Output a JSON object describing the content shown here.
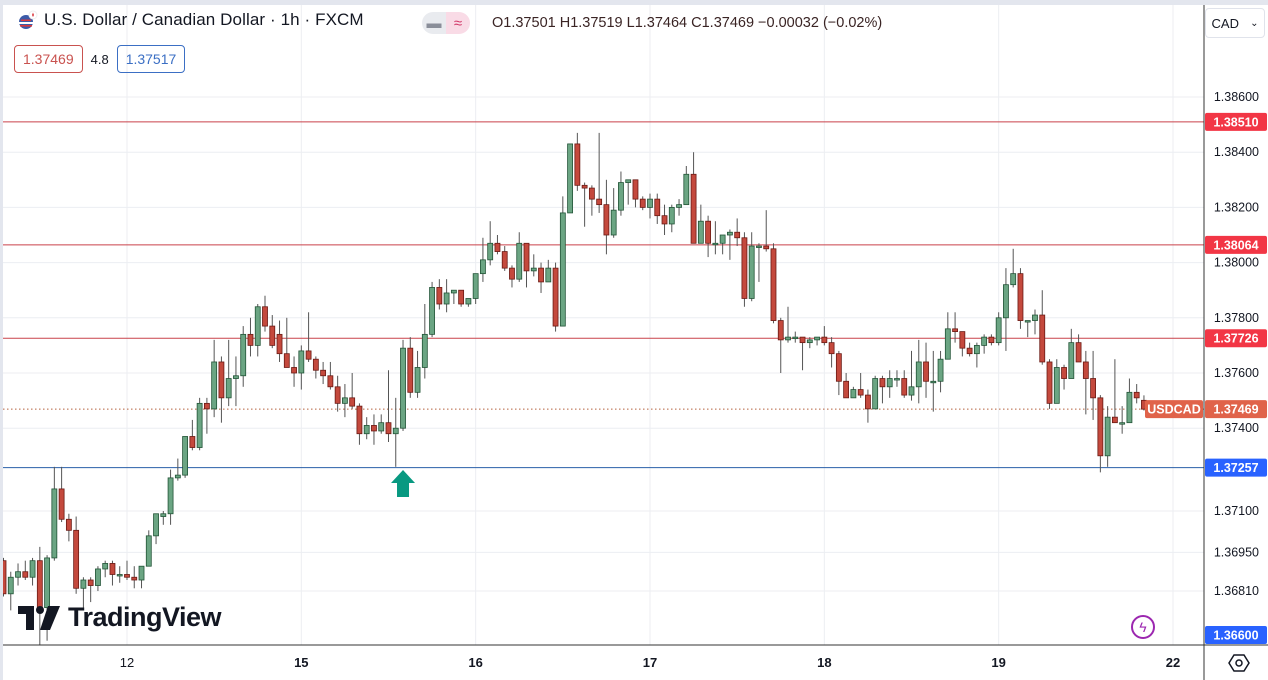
{
  "header": {
    "title": "U.S. Dollar / Canadian Dollar · 1h · FXCM",
    "flag_icon": "us-canada-flag-icon",
    "pill_left_icon": "minus-icon",
    "pill_right_icon": "≈",
    "ohlc": "O1.37501 H1.37519 L1.37464 C1.37469 −0.00032 (−0.02%)",
    "bid": "1.37469",
    "spread": "4.8",
    "ask": "1.37517",
    "currency": "CAD",
    "currency_icon": "chevron-down-icon"
  },
  "logo": {
    "text": "TradingView"
  },
  "colors": {
    "up": "#6ba583",
    "up_border": "#225437",
    "down": "#c4493d",
    "down_border": "#6b1a14",
    "resistance": "#f23645",
    "support": "#2962ff",
    "last_price": "#e0634a",
    "arrow": "#089981"
  },
  "chart_data": {
    "type": "candlestick",
    "symbol_label": "USDCAD",
    "ylim": [
      1.3655,
      1.3872
    ],
    "grid": true,
    "y_ticks": [
      "1.38600",
      "1.38400",
      "1.38200",
      "1.38000",
      "1.37800",
      "1.37600",
      "1.37400",
      "1.37100",
      "1.36950",
      "1.36810"
    ],
    "x_ticks": [
      {
        "label": "12",
        "candle": 17
      },
      {
        "label": "15",
        "candle": 41
      },
      {
        "label": "16",
        "candle": 65
      },
      {
        "label": "17",
        "candle": 89
      },
      {
        "label": "18",
        "candle": 113
      },
      {
        "label": "19",
        "candle": 137
      },
      {
        "label": "22",
        "candle": 161
      }
    ],
    "levels": [
      {
        "price": "1.38510",
        "kind": "resistance"
      },
      {
        "price": "1.38064",
        "kind": "resistance"
      },
      {
        "price": "1.37726",
        "kind": "resistance"
      },
      {
        "price": "1.37257",
        "kind": "support"
      }
    ],
    "bottom_label": "1.36600",
    "last_price": "1.37469",
    "arrow_candle": 54,
    "candles_ohlc": [
      [
        1.3692,
        1.3693,
        1.3679,
        1.368
      ],
      [
        1.368,
        1.3688,
        1.3674,
        1.3686
      ],
      [
        1.3686,
        1.3691,
        1.3683,
        1.3688
      ],
      [
        1.3688,
        1.3692,
        1.3685,
        1.3686
      ],
      [
        1.3686,
        1.3693,
        1.3683,
        1.3692
      ],
      [
        1.3692,
        1.3697,
        1.366,
        1.3675
      ],
      [
        1.3675,
        1.3694,
        1.3663,
        1.3693
      ],
      [
        1.3693,
        1.3726,
        1.3692,
        1.3718
      ],
      [
        1.3718,
        1.3726,
        1.3706,
        1.3707
      ],
      [
        1.3707,
        1.3709,
        1.3699,
        1.3703
      ],
      [
        1.3703,
        1.3708,
        1.368,
        1.3682
      ],
      [
        1.3682,
        1.3686,
        1.3674,
        1.3685
      ],
      [
        1.3685,
        1.3686,
        1.3677,
        1.3683
      ],
      [
        1.3683,
        1.369,
        1.3681,
        1.3689
      ],
      [
        1.3689,
        1.3692,
        1.3686,
        1.3691
      ],
      [
        1.3691,
        1.3692,
        1.3683,
        1.3687
      ],
      [
        1.3687,
        1.369,
        1.3684,
        1.3687
      ],
      [
        1.3687,
        1.3692,
        1.3685,
        1.3686
      ],
      [
        1.3686,
        1.369,
        1.3682,
        1.3685
      ],
      [
        1.3685,
        1.369,
        1.3682,
        1.369
      ],
      [
        1.369,
        1.3703,
        1.369,
        1.3701
      ],
      [
        1.3701,
        1.3709,
        1.3698,
        1.3709
      ],
      [
        1.3708,
        1.371,
        1.3705,
        1.3709
      ],
      [
        1.3709,
        1.3725,
        1.3705,
        1.3722
      ],
      [
        1.3722,
        1.3729,
        1.3721,
        1.3723
      ],
      [
        1.3723,
        1.3737,
        1.3722,
        1.3737
      ],
      [
        1.3737,
        1.3743,
        1.3732,
        1.3733
      ],
      [
        1.3733,
        1.3751,
        1.3732,
        1.3749
      ],
      [
        1.3749,
        1.3751,
        1.3738,
        1.3747
      ],
      [
        1.3747,
        1.3772,
        1.3744,
        1.3764
      ],
      [
        1.3764,
        1.3766,
        1.3742,
        1.3751
      ],
      [
        1.3751,
        1.3772,
        1.3748,
        1.3758
      ],
      [
        1.3758,
        1.3766,
        1.3748,
        1.3759
      ],
      [
        1.3759,
        1.3777,
        1.3755,
        1.3774
      ],
      [
        1.3774,
        1.378,
        1.3766,
        1.377
      ],
      [
        1.377,
        1.3785,
        1.3766,
        1.3784
      ],
      [
        1.3784,
        1.3788,
        1.3775,
        1.3777
      ],
      [
        1.3777,
        1.3781,
        1.3769,
        1.377
      ],
      [
        1.3774,
        1.3779,
        1.3764,
        1.3767
      ],
      [
        1.3767,
        1.378,
        1.3762,
        1.3762
      ],
      [
        1.3762,
        1.3766,
        1.3755,
        1.376
      ],
      [
        1.376,
        1.377,
        1.3754,
        1.3768
      ],
      [
        1.3768,
        1.3782,
        1.3764,
        1.3765
      ],
      [
        1.3765,
        1.3766,
        1.3758,
        1.3761
      ],
      [
        1.3761,
        1.3764,
        1.3756,
        1.3759
      ],
      [
        1.3759,
        1.3764,
        1.3754,
        1.3755
      ],
      [
        1.3755,
        1.3759,
        1.3746,
        1.3749
      ],
      [
        1.3749,
        1.3756,
        1.3744,
        1.3751
      ],
      [
        1.3751,
        1.376,
        1.3747,
        1.3748
      ],
      [
        1.3748,
        1.3749,
        1.3734,
        1.3738
      ],
      [
        1.3738,
        1.3744,
        1.3736,
        1.3741
      ],
      [
        1.3741,
        1.3745,
        1.3734,
        1.3739
      ],
      [
        1.3739,
        1.3745,
        1.3738,
        1.3742
      ],
      [
        1.3742,
        1.3761,
        1.3735,
        1.3738
      ],
      [
        1.3738,
        1.3751,
        1.3726,
        1.374
      ],
      [
        1.374,
        1.3772,
        1.3739,
        1.3769
      ],
      [
        1.3769,
        1.3773,
        1.3751,
        1.3753
      ],
      [
        1.3753,
        1.3768,
        1.3751,
        1.3762
      ],
      [
        1.3762,
        1.3785,
        1.3758,
        1.3774
      ],
      [
        1.3774,
        1.3793,
        1.3773,
        1.3791
      ],
      [
        1.3791,
        1.3794,
        1.3783,
        1.3785
      ],
      [
        1.3785,
        1.3794,
        1.3782,
        1.3789
      ],
      [
        1.3789,
        1.379,
        1.3785,
        1.379
      ],
      [
        1.379,
        1.379,
        1.3784,
        1.3785
      ],
      [
        1.3785,
        1.3787,
        1.3784,
        1.3787
      ],
      [
        1.3787,
        1.3796,
        1.3785,
        1.3796
      ],
      [
        1.3796,
        1.3809,
        1.3793,
        1.3801
      ],
      [
        1.3801,
        1.3815,
        1.3799,
        1.3807
      ],
      [
        1.3807,
        1.381,
        1.3803,
        1.3804
      ],
      [
        1.3804,
        1.3806,
        1.3797,
        1.3798
      ],
      [
        1.3798,
        1.3799,
        1.3791,
        1.3794
      ],
      [
        1.3794,
        1.3811,
        1.3793,
        1.3807
      ],
      [
        1.3807,
        1.3807,
        1.3791,
        1.3797
      ],
      [
        1.3797,
        1.3803,
        1.3795,
        1.3798
      ],
      [
        1.3798,
        1.38,
        1.3789,
        1.3793
      ],
      [
        1.3793,
        1.3801,
        1.3793,
        1.3798
      ],
      [
        1.3798,
        1.38,
        1.3775,
        1.3777
      ],
      [
        1.3777,
        1.3824,
        1.3777,
        1.3818
      ],
      [
        1.3818,
        1.3843,
        1.3818,
        1.3843
      ],
      [
        1.3843,
        1.3847,
        1.3826,
        1.3828
      ],
      [
        1.3828,
        1.3829,
        1.3813,
        1.3827
      ],
      [
        1.3827,
        1.3828,
        1.3817,
        1.3823
      ],
      [
        1.3823,
        1.3847,
        1.3818,
        1.3821
      ],
      [
        1.3821,
        1.383,
        1.3803,
        1.381
      ],
      [
        1.381,
        1.3827,
        1.3809,
        1.3819
      ],
      [
        1.3819,
        1.3833,
        1.3817,
        1.3829
      ],
      [
        1.3829,
        1.383,
        1.3821,
        1.383
      ],
      [
        1.383,
        1.383,
        1.382,
        1.3823
      ],
      [
        1.3823,
        1.3824,
        1.3819,
        1.382
      ],
      [
        1.382,
        1.3825,
        1.3816,
        1.3823
      ],
      [
        1.3823,
        1.3825,
        1.3814,
        1.3817
      ],
      [
        1.3817,
        1.3821,
        1.381,
        1.3814
      ],
      [
        1.3814,
        1.3821,
        1.3811,
        1.382
      ],
      [
        1.382,
        1.3823,
        1.3817,
        1.3821
      ],
      [
        1.3821,
        1.3835,
        1.3821,
        1.3832
      ],
      [
        1.3832,
        1.384,
        1.3807,
        1.3807
      ],
      [
        1.3807,
        1.3821,
        1.3807,
        1.3815
      ],
      [
        1.3815,
        1.3817,
        1.3802,
        1.3807
      ],
      [
        1.3807,
        1.3815,
        1.3803,
        1.3807
      ],
      [
        1.3807,
        1.381,
        1.3803,
        1.381
      ],
      [
        1.381,
        1.3812,
        1.3801,
        1.3811
      ],
      [
        1.3811,
        1.3816,
        1.3806,
        1.3809
      ],
      [
        1.3809,
        1.3811,
        1.3784,
        1.3787
      ],
      [
        1.3787,
        1.3811,
        1.3786,
        1.3806
      ],
      [
        1.3806,
        1.3807,
        1.3793,
        1.3806
      ],
      [
        1.3806,
        1.3819,
        1.3804,
        1.3805
      ],
      [
        1.3805,
        1.3807,
        1.3778,
        1.3779
      ],
      [
        1.3779,
        1.378,
        1.376,
        1.3772
      ],
      [
        1.3772,
        1.3784,
        1.3771,
        1.3773
      ],
      [
        1.3773,
        1.3775,
        1.3771,
        1.3773
      ],
      [
        1.3773,
        1.3773,
        1.3761,
        1.3771
      ],
      [
        1.3771,
        1.3773,
        1.3769,
        1.3772
      ],
      [
        1.3772,
        1.3773,
        1.377,
        1.3773
      ],
      [
        1.3773,
        1.3777,
        1.377,
        1.3771
      ],
      [
        1.3771,
        1.3773,
        1.3762,
        1.3767
      ],
      [
        1.3767,
        1.3768,
        1.3752,
        1.3757
      ],
      [
        1.3757,
        1.376,
        1.3751,
        1.3751
      ],
      [
        1.3751,
        1.3755,
        1.3751,
        1.3754
      ],
      [
        1.3754,
        1.376,
        1.3751,
        1.3752
      ],
      [
        1.3752,
        1.3754,
        1.3742,
        1.3747
      ],
      [
        1.3747,
        1.3759,
        1.3747,
        1.3758
      ],
      [
        1.3758,
        1.3759,
        1.3749,
        1.3755
      ],
      [
        1.3755,
        1.3761,
        1.3751,
        1.3758
      ],
      [
        1.3758,
        1.3761,
        1.3755,
        1.3758
      ],
      [
        1.3758,
        1.3761,
        1.3751,
        1.3752
      ],
      [
        1.3752,
        1.3768,
        1.375,
        1.3755
      ],
      [
        1.3755,
        1.3772,
        1.3749,
        1.3764
      ],
      [
        1.3764,
        1.3771,
        1.3751,
        1.3757
      ],
      [
        1.3757,
        1.3768,
        1.3746,
        1.3757
      ],
      [
        1.3757,
        1.3768,
        1.3753,
        1.3765
      ],
      [
        1.3765,
        1.3782,
        1.3765,
        1.3776
      ],
      [
        1.3776,
        1.3782,
        1.3771,
        1.3775
      ],
      [
        1.3775,
        1.3775,
        1.3766,
        1.3769
      ],
      [
        1.3769,
        1.3771,
        1.3766,
        1.3767
      ],
      [
        1.3767,
        1.3771,
        1.3762,
        1.377
      ],
      [
        1.377,
        1.3774,
        1.3767,
        1.3773
      ],
      [
        1.3773,
        1.3774,
        1.377,
        1.3771
      ],
      [
        1.3771,
        1.3782,
        1.377,
        1.378
      ],
      [
        1.378,
        1.3798,
        1.3768,
        1.3792
      ],
      [
        1.3792,
        1.3805,
        1.3791,
        1.3796
      ],
      [
        1.3796,
        1.3798,
        1.3776,
        1.3779
      ],
      [
        1.3779,
        1.3779,
        1.3773,
        1.3779
      ],
      [
        1.3779,
        1.3783,
        1.3774,
        1.3781
      ],
      [
        1.3781,
        1.379,
        1.3763,
        1.3764
      ],
      [
        1.3764,
        1.3765,
        1.3747,
        1.3749
      ],
      [
        1.3749,
        1.3765,
        1.3749,
        1.3762
      ],
      [
        1.3762,
        1.3763,
        1.3754,
        1.3758
      ],
      [
        1.3758,
        1.3776,
        1.3758,
        1.3771
      ],
      [
        1.3771,
        1.3774,
        1.3764,
        1.3764
      ],
      [
        1.3764,
        1.3768,
        1.3745,
        1.3758
      ],
      [
        1.3758,
        1.3768,
        1.3743,
        1.3751
      ],
      [
        1.3751,
        1.3752,
        1.3724,
        1.373
      ],
      [
        1.373,
        1.3748,
        1.3726,
        1.3744
      ],
      [
        1.3744,
        1.3765,
        1.3742,
        1.3742
      ],
      [
        1.3742,
        1.3748,
        1.3738,
        1.3742
      ],
      [
        1.3742,
        1.3758,
        1.3742,
        1.3753
      ],
      [
        1.3753,
        1.3756,
        1.3749,
        1.3751
      ],
      [
        1.37501,
        1.37519,
        1.37464,
        1.37469
      ]
    ]
  }
}
